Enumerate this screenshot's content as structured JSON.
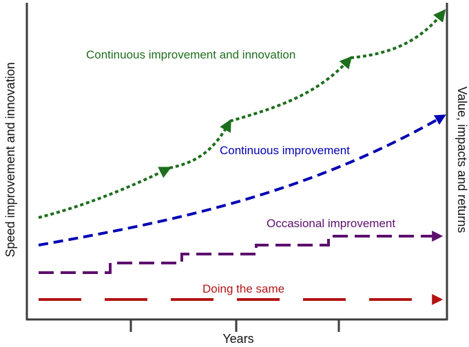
{
  "diagram": {
    "x_axis_label": "Years",
    "y_axis_left_label": "Speed improvement and innovation",
    "y_axis_right_label": "Value, impacts and returns",
    "colors": {
      "axis": "#3c3c3c",
      "continuous_innovation": "#1d6e1d",
      "continuous": "#0000b4",
      "occasional": "#5c0f6e",
      "same": "#b41414"
    },
    "curves": [
      {
        "key": "continuous_innovation",
        "label": "Continuous improvement and innovation"
      },
      {
        "key": "continuous",
        "label": "Continuous improvement"
      },
      {
        "key": "occasional",
        "label": "Occasional improvement"
      },
      {
        "key": "same",
        "label": "Doing the same"
      }
    ]
  }
}
